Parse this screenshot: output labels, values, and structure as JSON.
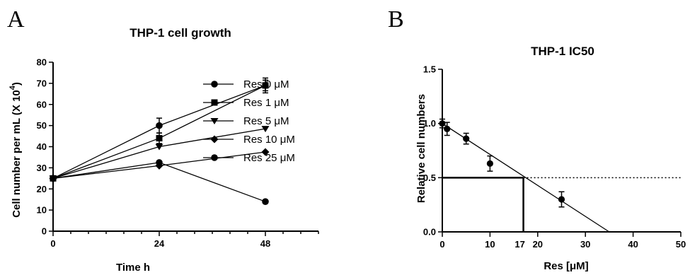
{
  "panels": {
    "a": {
      "letter": "A",
      "title": "THP-1 cell growth",
      "xlabel": "Time h",
      "ylabel": "Cell number per mL (X 10",
      "ylabel_sup": "4",
      "ylabel_close": ")"
    },
    "b": {
      "letter": "B",
      "title": "THP-1 IC50",
      "xlabel": "Res [μM]",
      "ylabel": "Relative cell numbers",
      "ic50_tick_label": "17"
    }
  },
  "chart_data": [
    {
      "type": "line",
      "title": "THP-1 cell growth",
      "xlabel": "Time h",
      "ylabel": "Cell number per mL (X 10^4)",
      "x": [
        0,
        24,
        48
      ],
      "xticks": [
        0,
        24,
        48
      ],
      "xlim": [
        0,
        60
      ],
      "ylim": [
        0,
        80
      ],
      "yticks": [
        0,
        10,
        20,
        30,
        40,
        50,
        60,
        70,
        80
      ],
      "legend_position": "right",
      "series": [
        {
          "name": "Res 0 μM",
          "marker": "circle",
          "values": [
            25,
            50,
            69
          ],
          "errors": [
            0,
            3.5,
            3.5
          ]
        },
        {
          "name": "Res 1 μM",
          "marker": "square",
          "values": [
            25,
            44,
            69
          ],
          "errors": [
            0,
            2.5,
            2.5
          ]
        },
        {
          "name": "Res 5 μM",
          "marker": "triangle-down",
          "values": [
            25,
            40,
            48.5
          ],
          "errors": [
            0,
            0,
            0
          ]
        },
        {
          "name": "Res 10 μM",
          "marker": "diamond",
          "values": [
            25,
            31,
            37.5
          ],
          "errors": [
            0,
            0,
            0
          ]
        },
        {
          "name": "Res 25 μM",
          "marker": "circle",
          "values": [
            25,
            32.5,
            14
          ],
          "errors": [
            0,
            0,
            0
          ]
        }
      ]
    },
    {
      "type": "scatter",
      "title": "THP-1 IC50",
      "xlabel": "Res [μM]",
      "ylabel": "Relative cell numbers",
      "xlim": [
        0,
        50
      ],
      "ylim": [
        0,
        1.5
      ],
      "xticks": [
        0,
        10,
        20,
        30,
        40,
        50
      ],
      "yticks": [
        0.0,
        0.5,
        1.0,
        1.5
      ],
      "yticklabels": [
        "0.0",
        "0.5",
        "1.0",
        "1.5"
      ],
      "points": [
        {
          "x": 0,
          "y": 1.0,
          "error": 0.04
        },
        {
          "x": 1,
          "y": 0.95,
          "error": 0.06
        },
        {
          "x": 5,
          "y": 0.86,
          "error": 0.05
        },
        {
          "x": 10,
          "y": 0.63,
          "error": 0.07
        },
        {
          "x": 25,
          "y": 0.3,
          "error": 0.07
        }
      ],
      "fit_line": {
        "x": [
          0,
          35
        ],
        "y": [
          1.0,
          0.0
        ]
      },
      "reference_line_y": 0.5,
      "ic50_x": 17
    }
  ]
}
